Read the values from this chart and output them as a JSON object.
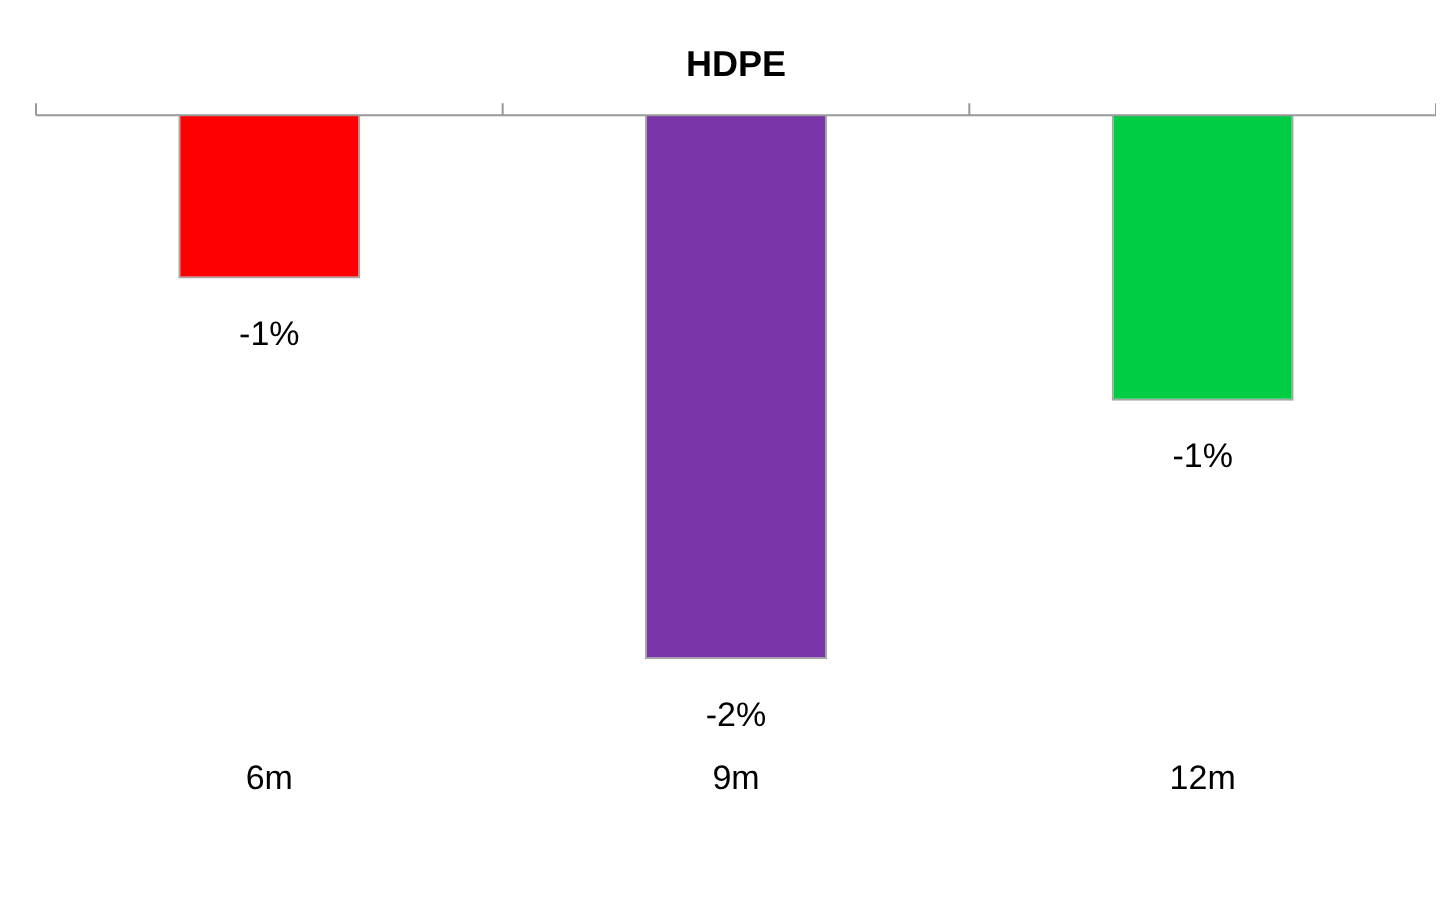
{
  "chart_data": {
    "type": "bar",
    "title": "HDPE",
    "categories": [
      "6m",
      "9m",
      "12m"
    ],
    "ylim": [
      -2,
      0
    ],
    "values": [
      -0.6,
      -2,
      -1.05
    ],
    "colors": [
      "#ff0000",
      "#7a35a8",
      "#00cc44"
    ],
    "value_labels": [
      "-1%",
      "-2%",
      "-1%"
    ],
    "grid": false,
    "legend": false
  }
}
